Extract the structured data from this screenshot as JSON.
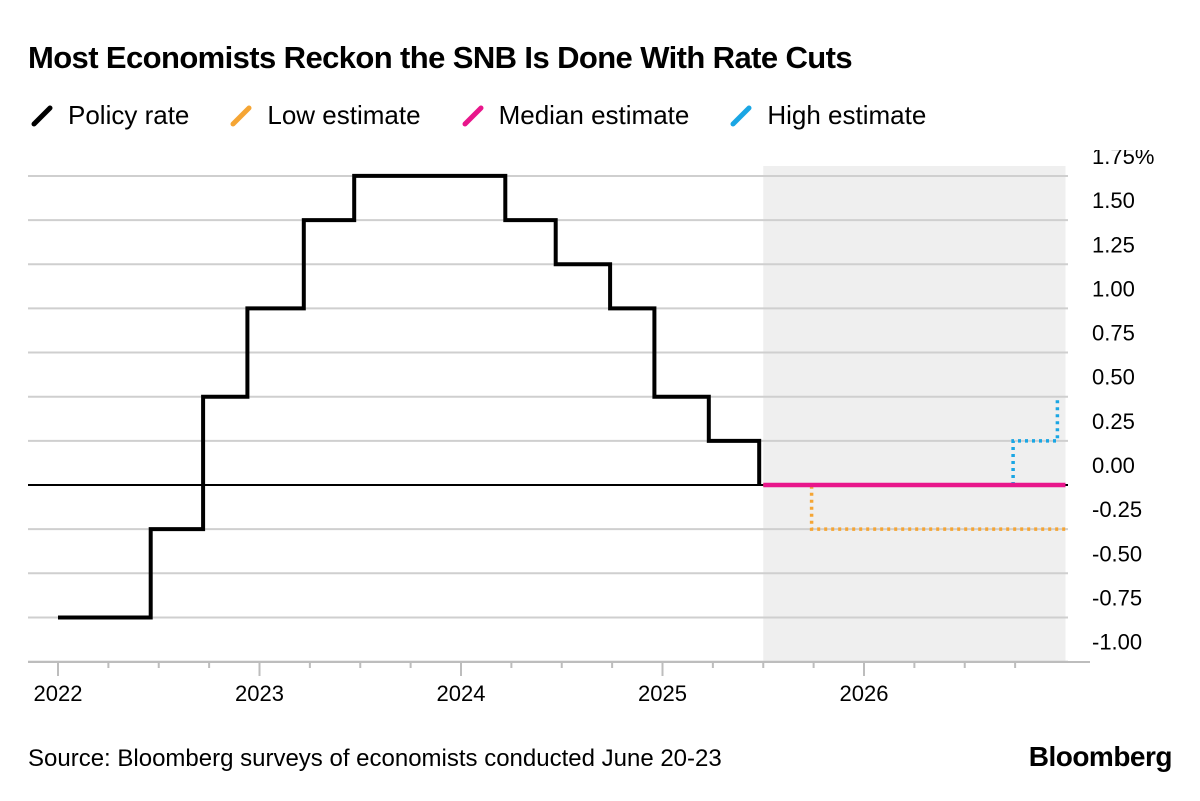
{
  "title": "Most Economists Reckon the SNB Is Done With Rate Cuts",
  "legend": [
    {
      "label": "Policy rate",
      "color": "#000000",
      "icon": "slash-swatch-icon"
    },
    {
      "label": "Low estimate",
      "color": "#f5a534",
      "icon": "slash-swatch-icon"
    },
    {
      "label": "Median estimate",
      "color": "#e8168b",
      "icon": "slash-swatch-icon"
    },
    {
      "label": "High estimate",
      "color": "#1aa6e4",
      "icon": "slash-swatch-icon"
    }
  ],
  "source": "Source: Bloomberg surveys of economists conducted June 20-23",
  "brand": "Bloomberg",
  "chart_data": {
    "type": "line",
    "title": "Most Economists Reckon the SNB Is Done With Rate Cuts",
    "xlabel": "",
    "ylabel": "",
    "ylim": [
      -1.0,
      1.75
    ],
    "xlim": [
      2022.0,
      2027.0
    ],
    "y_ticks": [
      "1.75%",
      "1.50",
      "1.25",
      "1.00",
      "0.75",
      "0.50",
      "0.25",
      "0.00",
      "-0.25",
      "-0.50",
      "-0.75",
      "-1.00"
    ],
    "y_tick_values": [
      1.75,
      1.5,
      1.25,
      1.0,
      0.75,
      0.5,
      0.25,
      0.0,
      -0.25,
      -0.5,
      -0.75,
      -1.0
    ],
    "x_ticks": [
      "2022",
      "2023",
      "2024",
      "2025",
      "2026"
    ],
    "x_tick_values": [
      2022,
      2023,
      2024,
      2025,
      2026
    ],
    "forecast_shading": {
      "from": 2025.5,
      "to": 2027.0
    },
    "series": [
      {
        "name": "Policy rate",
        "style": "solid-step",
        "color": "#000000",
        "x": [
          2022.0,
          2022.46,
          2022.46,
          2022.72,
          2022.72,
          2022.94,
          2022.94,
          2023.22,
          2023.22,
          2023.47,
          2023.47,
          2024.22,
          2024.22,
          2024.47,
          2024.47,
          2024.74,
          2024.74,
          2024.96,
          2024.96,
          2025.23,
          2025.23,
          2025.48,
          2025.48
        ],
        "values": [
          -0.75,
          -0.75,
          -0.25,
          -0.25,
          0.5,
          0.5,
          1.0,
          1.0,
          1.5,
          1.5,
          1.75,
          1.75,
          1.5,
          1.5,
          1.25,
          1.25,
          1.0,
          1.0,
          0.5,
          0.5,
          0.25,
          0.25,
          0.0
        ]
      },
      {
        "name": "Low estimate",
        "style": "dotted-step",
        "color": "#f5a534",
        "x": [
          2025.5,
          2025.74,
          2025.74,
          2027.0
        ],
        "values": [
          0.0,
          0.0,
          -0.25,
          -0.25
        ]
      },
      {
        "name": "Median estimate",
        "style": "solid",
        "color": "#e8168b",
        "x": [
          2025.5,
          2027.0
        ],
        "values": [
          0.0,
          0.0
        ]
      },
      {
        "name": "High estimate",
        "style": "dotted-step",
        "color": "#1aa6e4",
        "x": [
          2026.74,
          2026.74,
          2026.96,
          2026.96
        ],
        "values": [
          0.0,
          0.25,
          0.25,
          0.5
        ]
      }
    ]
  }
}
